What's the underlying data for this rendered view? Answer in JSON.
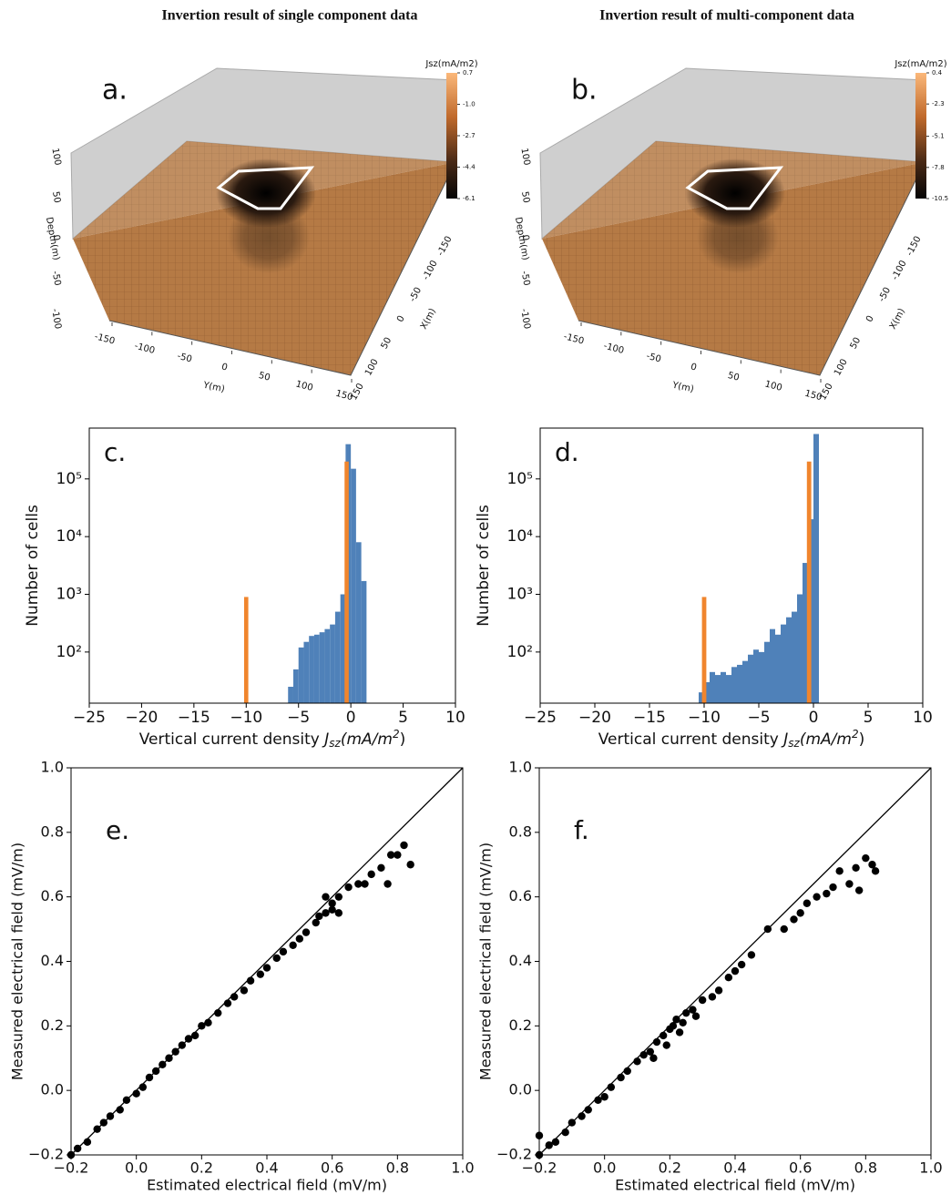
{
  "titles": [
    "Invertion result of single component data",
    "Invertion result of multi-component data"
  ],
  "chart_data": [
    {
      "type": "volume",
      "panel": "a.",
      "colorbar_label": "Jsz(mA/m2)",
      "clim": [
        -6.1,
        0.7
      ],
      "cticks": [
        0.7,
        {
          "value": -1,
          "label": "-1.0"
        },
        -2.7,
        -4.4,
        -6.1
      ],
      "zlabel": "Depth(m)",
      "zlim": [
        -100,
        100
      ],
      "zticks": [
        100,
        50,
        0,
        -50,
        -100
      ],
      "ylabel": "Y(m)",
      "ylim": [
        -150,
        150
      ],
      "yticks": [
        -150,
        -100,
        -50,
        0,
        50,
        100,
        150
      ],
      "xlabel": "X(m)",
      "xlim": [
        -150,
        150
      ],
      "xticks": [
        -150,
        -100,
        -50,
        0,
        50,
        100,
        150
      ]
    },
    {
      "type": "volume",
      "panel": "b.",
      "colorbar_label": "Jsz(mA/m2)",
      "clim": [
        -10.5,
        0.4
      ],
      "cticks": [
        0.4,
        -2.3,
        -5.1,
        -7.8,
        -10.5
      ],
      "zlabel": "Depth(m)",
      "zlim": [
        -100,
        100
      ],
      "zticks": [
        100,
        50,
        0,
        -50,
        -100
      ],
      "ylabel": "Y(m)",
      "ylim": [
        -150,
        150
      ],
      "yticks": [
        -150,
        -100,
        -50,
        0,
        50,
        100,
        150
      ],
      "xlabel": "X(m)",
      "xlim": [
        -150,
        150
      ],
      "xticks": [
        -150,
        -100,
        -50,
        0,
        50,
        100,
        150
      ]
    },
    {
      "type": "histogram",
      "panel": "c.",
      "ylabel": "Number of cells",
      "xlabel_parts": [
        "Vertical current density ",
        "J",
        "sz",
        "(mA/m",
        "2",
        ")"
      ],
      "log": true,
      "xlim": [
        -25,
        10
      ],
      "ylim": [
        13,
        760000
      ],
      "xticks": [
        {
          "value": -25,
          "label": "−25"
        },
        {
          "value": -20,
          "label": "−20"
        },
        {
          "value": -15,
          "label": "−15"
        },
        {
          "value": -10,
          "label": "−10"
        },
        {
          "value": -5,
          "label": "−5"
        },
        0,
        5,
        10
      ],
      "yticks": [
        {
          "value": 100,
          "label": "10²"
        },
        {
          "value": 1000,
          "label": "10³"
        },
        {
          "value": 10000,
          "label": "10⁴"
        },
        {
          "value": 100000,
          "label": "10⁵"
        }
      ],
      "series": [
        {
          "color": "#4f81b9",
          "bins": [
            -6,
            -5.5,
            -5,
            -4.5,
            -4,
            -3.5,
            -3,
            -2.5,
            -2,
            -1.5,
            -1,
            -0.5,
            0,
            0.5,
            1,
            1.5
          ],
          "values": [
            25,
            50,
            120,
            150,
            190,
            200,
            220,
            250,
            300,
            500,
            1000,
            400000,
            150000,
            8000,
            1700
          ]
        },
        {
          "color": "#f0852d",
          "bins": [
            -10.2,
            -9.8,
            -0.6,
            -0.2
          ],
          "values": [
            900,
            null,
            200000
          ]
        }
      ]
    },
    {
      "type": "histogram",
      "panel": "d.",
      "ylabel": "Number of cells",
      "xlabel_parts": [
        "Vertical current density ",
        "J",
        "sz",
        "(mA/m",
        "2",
        ")"
      ],
      "log": true,
      "xlim": [
        -25,
        10
      ],
      "ylim": [
        13,
        760000
      ],
      "xticks": [
        {
          "value": -25,
          "label": "−25"
        },
        {
          "value": -20,
          "label": "−20"
        },
        {
          "value": -15,
          "label": "−15"
        },
        {
          "value": -10,
          "label": "−10"
        },
        {
          "value": -5,
          "label": "−5"
        },
        0,
        5,
        10
      ],
      "yticks": [
        {
          "value": 100,
          "label": "10²"
        },
        {
          "value": 1000,
          "label": "10³"
        },
        {
          "value": 10000,
          "label": "10⁴"
        },
        {
          "value": 100000,
          "label": "10⁵"
        }
      ],
      "series": [
        {
          "color": "#4f81b9",
          "bins": [
            -10.5,
            -10,
            -9.5,
            -9,
            -8.5,
            -8,
            -7.5,
            -7,
            -6.5,
            -6,
            -5.5,
            -5,
            -4.5,
            -4,
            -3.5,
            -3,
            -2.5,
            -2,
            -1.5,
            -1,
            -0.5,
            0,
            0.5
          ],
          "values": [
            20,
            30,
            45,
            40,
            45,
            40,
            55,
            60,
            70,
            90,
            110,
            100,
            150,
            250,
            200,
            300,
            400,
            500,
            1000,
            3500,
            20000,
            600000
          ]
        },
        {
          "color": "#f0852d",
          "bins": [
            -10.2,
            -9.8,
            -0.6,
            -0.2
          ],
          "values": [
            900,
            null,
            200000
          ]
        }
      ]
    },
    {
      "type": "scatter",
      "panel": "e.",
      "xlabel": "Estimated electrical field (mV/m)",
      "ylabel": "Measured electrical field (mV/m)",
      "diagonal": true,
      "color": "#000000",
      "xlim": [
        -0.2,
        1.0
      ],
      "ylim": [
        -0.2,
        1.0
      ],
      "xticks": [
        {
          "value": -0.2,
          "label": "−0.2"
        },
        {
          "value": 0,
          "label": "0.0"
        },
        0.2,
        0.4,
        0.6,
        0.8,
        {
          "value": 1,
          "label": "1.0"
        }
      ],
      "yticks": [
        {
          "value": -0.2,
          "label": "−0.2"
        },
        {
          "value": 0,
          "label": "0.0"
        },
        0.2,
        0.4,
        0.6,
        0.8,
        {
          "value": 1,
          "label": "1.0"
        }
      ],
      "x": [
        -0.2,
        -0.18,
        -0.15,
        -0.12,
        -0.1,
        -0.08,
        -0.05,
        -0.03,
        0,
        0.02,
        0.04,
        0.06,
        0.08,
        0.1,
        0.12,
        0.14,
        0.16,
        0.18,
        0.2,
        0.22,
        0.25,
        0.28,
        0.3,
        0.33,
        0.35,
        0.38,
        0.4,
        0.43,
        0.45,
        0.48,
        0.5,
        0.52,
        0.55,
        0.58,
        0.6,
        0.62,
        0.6,
        0.65,
        0.68,
        0.7,
        0.72,
        0.75,
        0.77,
        0.78,
        0.8,
        0.82,
        0.84,
        0.62,
        0.58,
        0.56
      ],
      "values": [
        -0.2,
        -0.18,
        -0.16,
        -0.12,
        -0.1,
        -0.08,
        -0.06,
        -0.03,
        -0.01,
        0.01,
        0.04,
        0.06,
        0.08,
        0.1,
        0.12,
        0.14,
        0.16,
        0.17,
        0.2,
        0.21,
        0.24,
        0.27,
        0.29,
        0.31,
        0.34,
        0.36,
        0.38,
        0.41,
        0.43,
        0.45,
        0.47,
        0.49,
        0.52,
        0.55,
        0.56,
        0.6,
        0.58,
        0.63,
        0.64,
        0.64,
        0.67,
        0.69,
        0.64,
        0.73,
        0.73,
        0.76,
        0.7,
        0.55,
        0.6,
        0.54
      ]
    },
    {
      "type": "scatter",
      "panel": "f.",
      "xlabel": "Estimated electrical field (mV/m)",
      "ylabel": "Measured electrical field (mV/m)",
      "diagonal": true,
      "color": "#000000",
      "xlim": [
        -0.2,
        1.0
      ],
      "ylim": [
        -0.2,
        1.0
      ],
      "xticks": [
        {
          "value": -0.2,
          "label": "−0.2"
        },
        {
          "value": 0,
          "label": "0.0"
        },
        0.2,
        0.4,
        0.6,
        0.8,
        {
          "value": 1,
          "label": "1.0"
        }
      ],
      "yticks": [
        {
          "value": -0.2,
          "label": "−0.2"
        },
        {
          "value": 0,
          "label": "0.0"
        },
        0.2,
        0.4,
        0.6,
        0.8,
        {
          "value": 1,
          "label": "1.0"
        }
      ],
      "x": [
        -0.2,
        -0.2,
        -0.17,
        -0.15,
        -0.12,
        -0.1,
        -0.07,
        -0.05,
        -0.02,
        0,
        0.02,
        0.05,
        0.07,
        0.1,
        0.12,
        0.14,
        0.16,
        0.18,
        0.2,
        0.21,
        0.22,
        0.24,
        0.25,
        0.27,
        0.15,
        0.19,
        0.23,
        0.28,
        0.3,
        0.33,
        0.35,
        0.38,
        0.4,
        0.42,
        0.45,
        0.5,
        0.55,
        0.58,
        0.6,
        0.62,
        0.65,
        0.68,
        0.7,
        0.72,
        0.75,
        0.77,
        0.8,
        0.83,
        0.78,
        0.82
      ],
      "values": [
        -0.14,
        -0.2,
        -0.17,
        -0.16,
        -0.13,
        -0.1,
        -0.08,
        -0.06,
        -0.03,
        -0.02,
        0.01,
        0.04,
        0.06,
        0.09,
        0.11,
        0.12,
        0.15,
        0.17,
        0.19,
        0.2,
        0.22,
        0.21,
        0.24,
        0.25,
        0.1,
        0.14,
        0.18,
        0.23,
        0.28,
        0.29,
        0.31,
        0.35,
        0.37,
        0.39,
        0.42,
        0.5,
        0.5,
        0.53,
        0.55,
        0.58,
        0.6,
        0.61,
        0.63,
        0.68,
        0.64,
        0.69,
        0.72,
        0.68,
        0.62,
        0.7
      ]
    }
  ]
}
